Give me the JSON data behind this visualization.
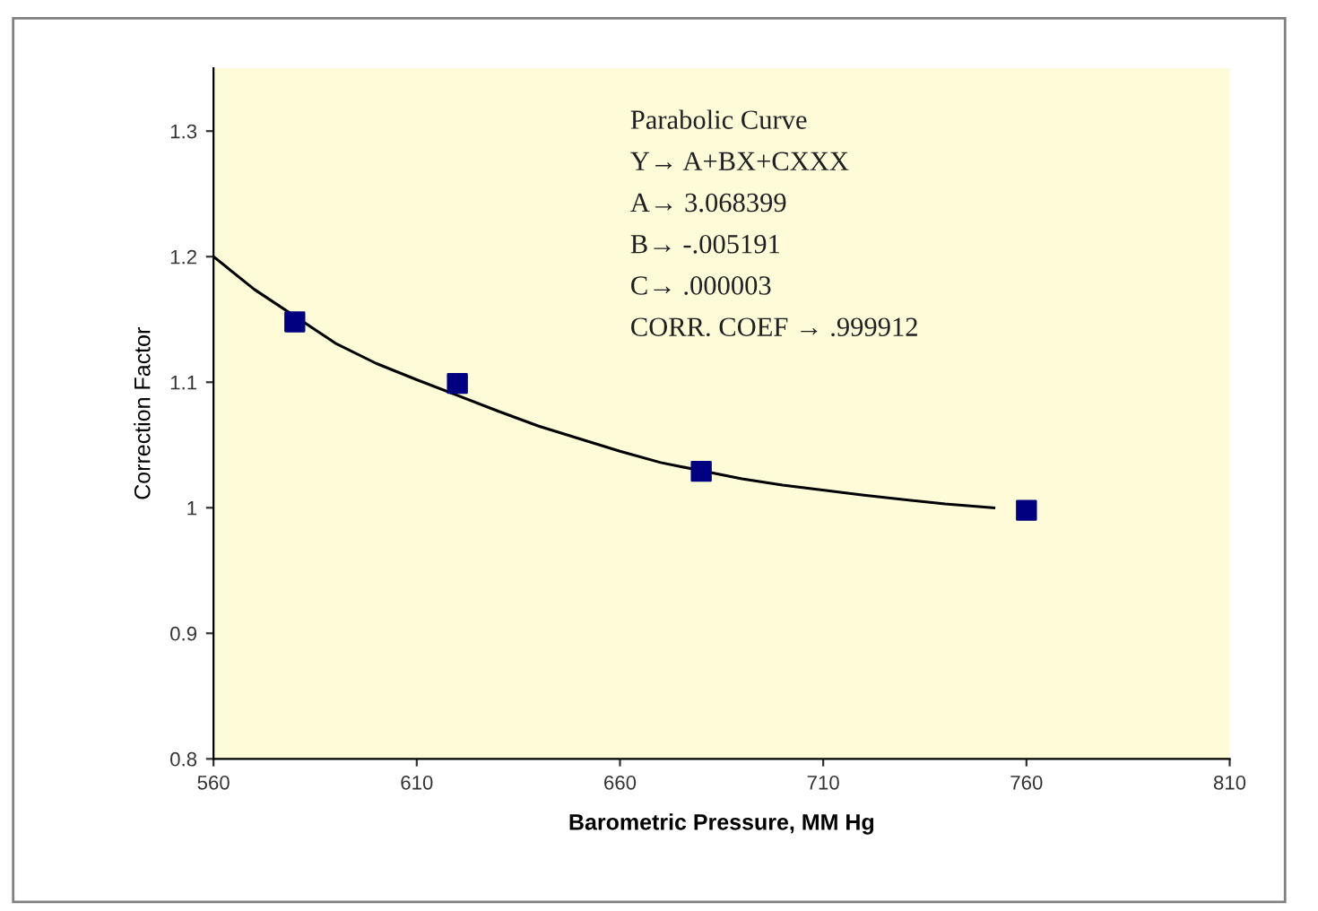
{
  "chart_data": {
    "type": "line",
    "xlabel": "Barometric Pressure, MM Hg",
    "ylabel": "Correction Factor",
    "xlim": [
      560,
      810
    ],
    "xticks": [
      560,
      610,
      660,
      710,
      760,
      810
    ],
    "ylim": [
      0.8,
      1.35
    ],
    "yticks": [
      0.8,
      0.9,
      1,
      1.1,
      1.2,
      1.3
    ],
    "grid": false,
    "legend": false,
    "series": [
      {
        "type": "scatter",
        "marker": "square",
        "color": "#000080",
        "x": [
          580,
          620,
          680,
          760
        ],
        "values": [
          1.148,
          1.099,
          1.029,
          0.998
        ]
      },
      {
        "color": "#000000",
        "x": [
          560,
          570,
          590,
          600,
          610,
          630,
          640,
          660,
          670,
          690,
          700,
          720,
          740,
          752
        ],
        "values": [
          1.2,
          1.174,
          1.131,
          1.115,
          1.102,
          1.077,
          1.065,
          1.045,
          1.036,
          1.023,
          1.018,
          1.01,
          1.003,
          1.0
        ]
      }
    ],
    "annotations": [
      "Parabolic Curve",
      "Y→ A+BX+CXXX",
      "A→ 3.068399",
      "B→ -.005191",
      "C→ .000003",
      "CORR. COEF → .999912"
    ]
  }
}
